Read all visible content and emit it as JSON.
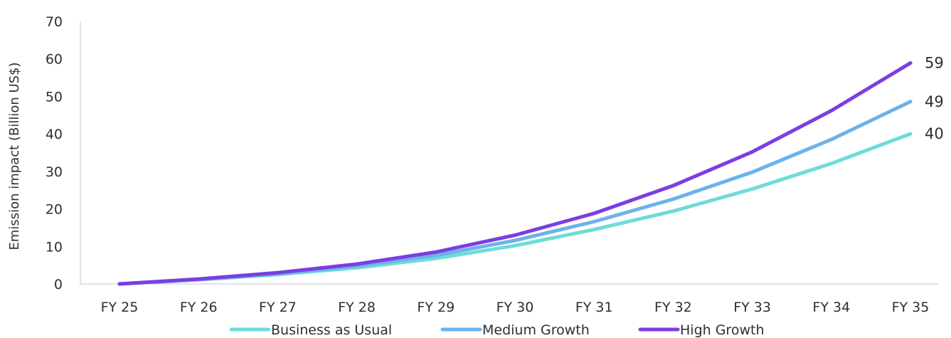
{
  "chart_data": {
    "type": "line",
    "title": "",
    "xlabel": "",
    "ylabel": "Emission impact (Billion US$)",
    "categories": [
      "FY 25",
      "FY 26",
      "FY 27",
      "FY 28",
      "FY 29",
      "FY 30",
      "FY 31",
      "FY 32",
      "FY 33",
      "FY 34",
      "FY 35"
    ],
    "ylim": [
      0,
      70
    ],
    "yticks": [
      "0",
      "10",
      "20",
      "30",
      "40",
      "50",
      "60",
      "70"
    ],
    "grid": false,
    "legend_position": "bottom",
    "series": [
      {
        "name": "Business as Usual",
        "color": "#6ddcd7",
        "values": [
          0,
          1.1,
          2.5,
          4.3,
          6.8,
          10.2,
          14.5,
          19.4,
          25.3,
          32.1,
          40
        ],
        "end_label": "40"
      },
      {
        "name": "Medium Growth",
        "color": "#6cb2ea",
        "values": [
          0,
          1.2,
          2.7,
          4.8,
          7.6,
          11.6,
          16.6,
          22.6,
          29.8,
          38.5,
          48.6
        ],
        "end_label": "49"
      },
      {
        "name": "High Growth",
        "color": "#7c3de3",
        "values": [
          0,
          1.3,
          3.0,
          5.3,
          8.5,
          13.0,
          18.8,
          26.2,
          35.2,
          46.2,
          58.9
        ],
        "end_label": "59"
      }
    ]
  }
}
